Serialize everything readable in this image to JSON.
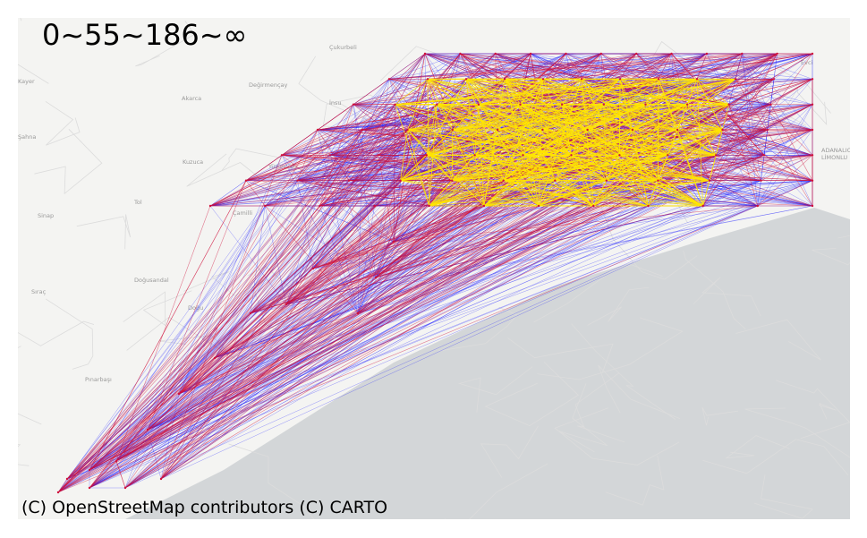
{
  "map": {
    "legend_title": "0~55~186~∞",
    "attribution": "(C) OpenStreetMap contributors (C) CARTO",
    "place_labels": [
      "Çukurbeli",
      "Değirmençay",
      "Akarca",
      "İnsu",
      "Kuzuca",
      "Yürüncülu",
      "Tol",
      "Çamilli",
      "Sinap",
      "Doğusandal",
      "Sıraç",
      "Doğu",
      "Pınarbaşı",
      "Evci",
      "ADANALIOĞLU",
      "LİMONLU",
      "Şahna",
      "Kayer"
    ],
    "edge_colors": {
      "low": "#1a1aff",
      "mid": "#d0103a",
      "high": "#ffe600"
    },
    "sea_color": "#d3d6d8",
    "land_color": "#f4f4f2",
    "road_color": "#dcdcdc"
  }
}
